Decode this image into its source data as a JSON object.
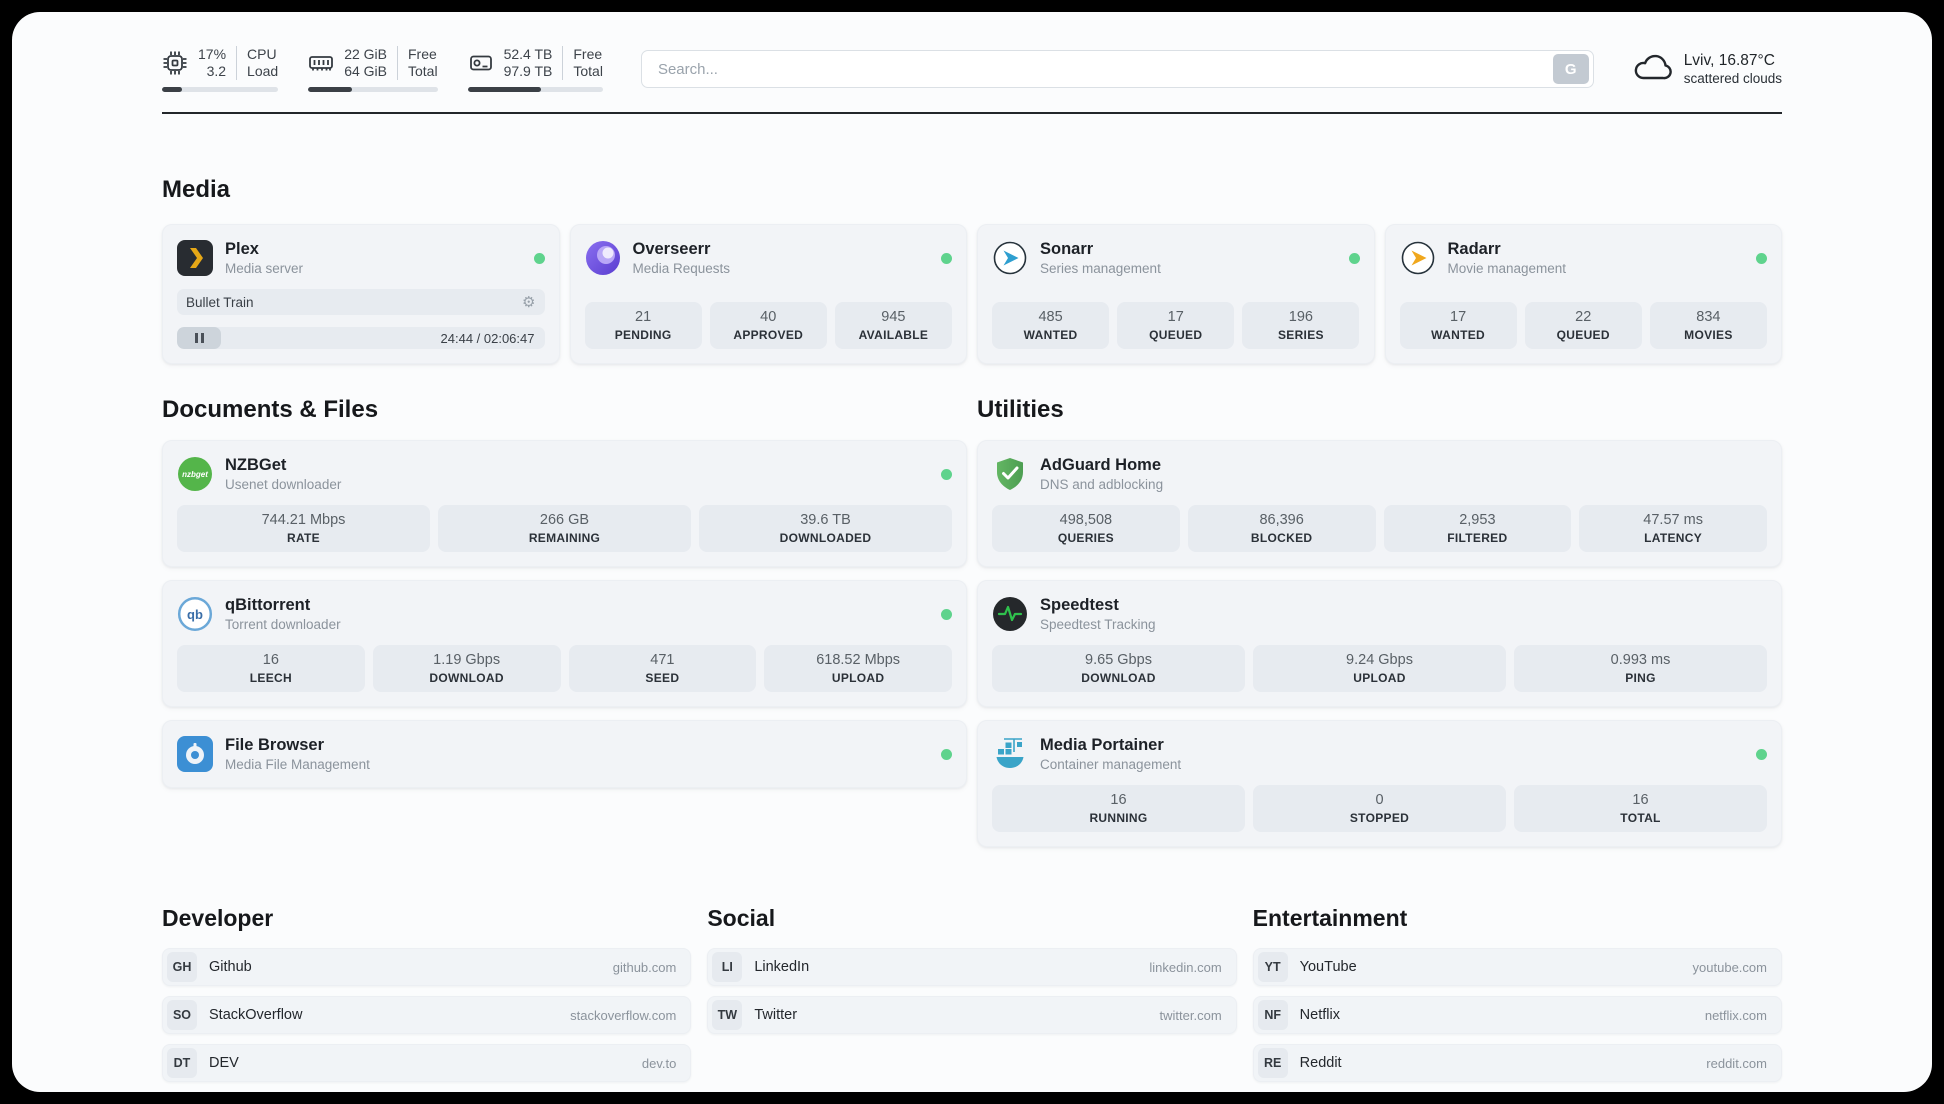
{
  "header": {
    "cpu": {
      "value_top": "17%",
      "value_bottom": "3.2",
      "label_top": "CPU",
      "label_bottom": "Load",
      "bar_pct": 17
    },
    "ram": {
      "value_top": "22 GiB",
      "value_bottom": "64 GiB",
      "label_top": "Free",
      "label_bottom": "Total",
      "bar_pct": 34
    },
    "disk": {
      "value_top": "52.4 TB",
      "value_bottom": "97.9 TB",
      "label_top": "Free",
      "label_bottom": "Total",
      "bar_pct": 54
    },
    "search": {
      "placeholder": "Search...",
      "button": "G"
    },
    "weather": {
      "location": "Lviv, 16.87°C",
      "condition": "scattered clouds"
    }
  },
  "sections": {
    "media": {
      "title": "Media"
    },
    "documents": {
      "title": "Documents & Files"
    },
    "utilities": {
      "title": "Utilities"
    }
  },
  "apps": {
    "plex": {
      "name": "Plex",
      "subtitle": "Media server",
      "now_playing": "Bullet Train",
      "time": "24:44 / 02:06:47"
    },
    "overseerr": {
      "name": "Overseerr",
      "subtitle": "Media Requests",
      "stats": [
        {
          "value": "21",
          "label": "PENDING"
        },
        {
          "value": "40",
          "label": "APPROVED"
        },
        {
          "value": "945",
          "label": "AVAILABLE"
        }
      ]
    },
    "sonarr": {
      "name": "Sonarr",
      "subtitle": "Series management",
      "stats": [
        {
          "value": "485",
          "label": "WANTED"
        },
        {
          "value": "17",
          "label": "QUEUED"
        },
        {
          "value": "196",
          "label": "SERIES"
        }
      ]
    },
    "radarr": {
      "name": "Radarr",
      "subtitle": "Movie management",
      "stats": [
        {
          "value": "17",
          "label": "WANTED"
        },
        {
          "value": "22",
          "label": "QUEUED"
        },
        {
          "value": "834",
          "label": "MOVIES"
        }
      ]
    },
    "nzbget": {
      "name": "NZBGet",
      "subtitle": "Usenet downloader",
      "stats": [
        {
          "value": "744.21 Mbps",
          "label": "RATE"
        },
        {
          "value": "266 GB",
          "label": "REMAINING"
        },
        {
          "value": "39.6 TB",
          "label": "DOWNLOADED"
        }
      ]
    },
    "qbittorrent": {
      "name": "qBittorrent",
      "subtitle": "Torrent downloader",
      "stats": [
        {
          "value": "16",
          "label": "LEECH"
        },
        {
          "value": "1.19 Gbps",
          "label": "DOWNLOAD"
        },
        {
          "value": "471",
          "label": "SEED"
        },
        {
          "value": "618.52 Mbps",
          "label": "UPLOAD"
        }
      ]
    },
    "filebrowser": {
      "name": "File Browser",
      "subtitle": "Media File Management"
    },
    "adguard": {
      "name": "AdGuard Home",
      "subtitle": "DNS and adblocking",
      "stats": [
        {
          "value": "498,508",
          "label": "QUERIES"
        },
        {
          "value": "86,396",
          "label": "BLOCKED"
        },
        {
          "value": "2,953",
          "label": "FILTERED"
        },
        {
          "value": "47.57 ms",
          "label": "LATENCY"
        }
      ]
    },
    "speedtest": {
      "name": "Speedtest",
      "subtitle": "Speedtest Tracking",
      "stats": [
        {
          "value": "9.65 Gbps",
          "label": "DOWNLOAD"
        },
        {
          "value": "9.24 Gbps",
          "label": "UPLOAD"
        },
        {
          "value": "0.993 ms",
          "label": "PING"
        }
      ]
    },
    "portainer": {
      "name": "Media Portainer",
      "subtitle": "Container management",
      "stats": [
        {
          "value": "16",
          "label": "RUNNING"
        },
        {
          "value": "0",
          "label": "STOPPED"
        },
        {
          "value": "16",
          "label": "TOTAL"
        }
      ]
    }
  },
  "bookmarks": {
    "developer": {
      "title": "Developer",
      "items": [
        {
          "badge": "GH",
          "name": "Github",
          "url": "github.com"
        },
        {
          "badge": "SO",
          "name": "StackOverflow",
          "url": "stackoverflow.com"
        },
        {
          "badge": "DT",
          "name": "DEV",
          "url": "dev.to"
        }
      ]
    },
    "social": {
      "title": "Social",
      "items": [
        {
          "badge": "LI",
          "name": "LinkedIn",
          "url": "linkedin.com"
        },
        {
          "badge": "TW",
          "name": "Twitter",
          "url": "twitter.com"
        }
      ]
    },
    "entertainment": {
      "title": "Entertainment",
      "items": [
        {
          "badge": "YT",
          "name": "YouTube",
          "url": "youtube.com"
        },
        {
          "badge": "NF",
          "name": "Netflix",
          "url": "netflix.com"
        },
        {
          "badge": "RE",
          "name": "Reddit",
          "url": "reddit.com"
        }
      ]
    }
  },
  "colors": {
    "accent_green": "#5fd38d",
    "card_bg": "#f2f4f7",
    "stat_bg": "#e7ebf0"
  }
}
